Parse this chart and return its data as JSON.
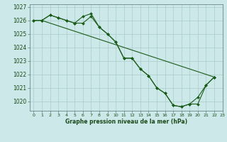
{
  "background_color": "#cce8e8",
  "grid_color": "#aacccc",
  "line_color": "#1a5c1a",
  "xlabel": "Graphe pression niveau de la mer (hPa)",
  "ylim": [
    1019.3,
    1027.2
  ],
  "xlim": [
    -0.5,
    23
  ],
  "yticks": [
    1020,
    1021,
    1022,
    1023,
    1024,
    1025,
    1026,
    1027
  ],
  "xticks": [
    0,
    1,
    2,
    3,
    4,
    5,
    6,
    7,
    8,
    9,
    10,
    11,
    12,
    13,
    14,
    15,
    16,
    17,
    18,
    19,
    20,
    21,
    22,
    23
  ],
  "series1_x": [
    0,
    1,
    2,
    3,
    4,
    5,
    6,
    7,
    8,
    9,
    10,
    11,
    12,
    13,
    14,
    15,
    16,
    17,
    18,
    19,
    20,
    21,
    22
  ],
  "series1_y": [
    1026.0,
    1026.0,
    1026.4,
    1026.2,
    1026.0,
    1025.8,
    1025.8,
    1026.3,
    1025.5,
    1025.0,
    1024.4,
    1023.2,
    1023.2,
    1022.4,
    1021.9,
    1021.0,
    1020.6,
    1019.7,
    1019.6,
    1019.8,
    1019.8,
    1021.2,
    1021.8
  ],
  "series2_x": [
    0,
    1,
    2,
    3,
    4,
    5,
    6,
    7,
    8,
    9,
    10,
    11,
    12,
    13,
    14,
    15,
    16,
    17,
    18,
    19,
    20,
    21,
    22
  ],
  "series2_y": [
    1026.0,
    1026.0,
    1026.4,
    1026.2,
    1026.0,
    1025.8,
    1026.3,
    1026.5,
    1025.5,
    1025.0,
    1024.4,
    1023.2,
    1023.2,
    1022.4,
    1021.9,
    1021.0,
    1020.6,
    1019.7,
    1019.6,
    1019.8,
    1020.3,
    1021.2,
    1021.8
  ],
  "series3_x": [
    1,
    22
  ],
  "series3_y": [
    1026.0,
    1021.8
  ]
}
